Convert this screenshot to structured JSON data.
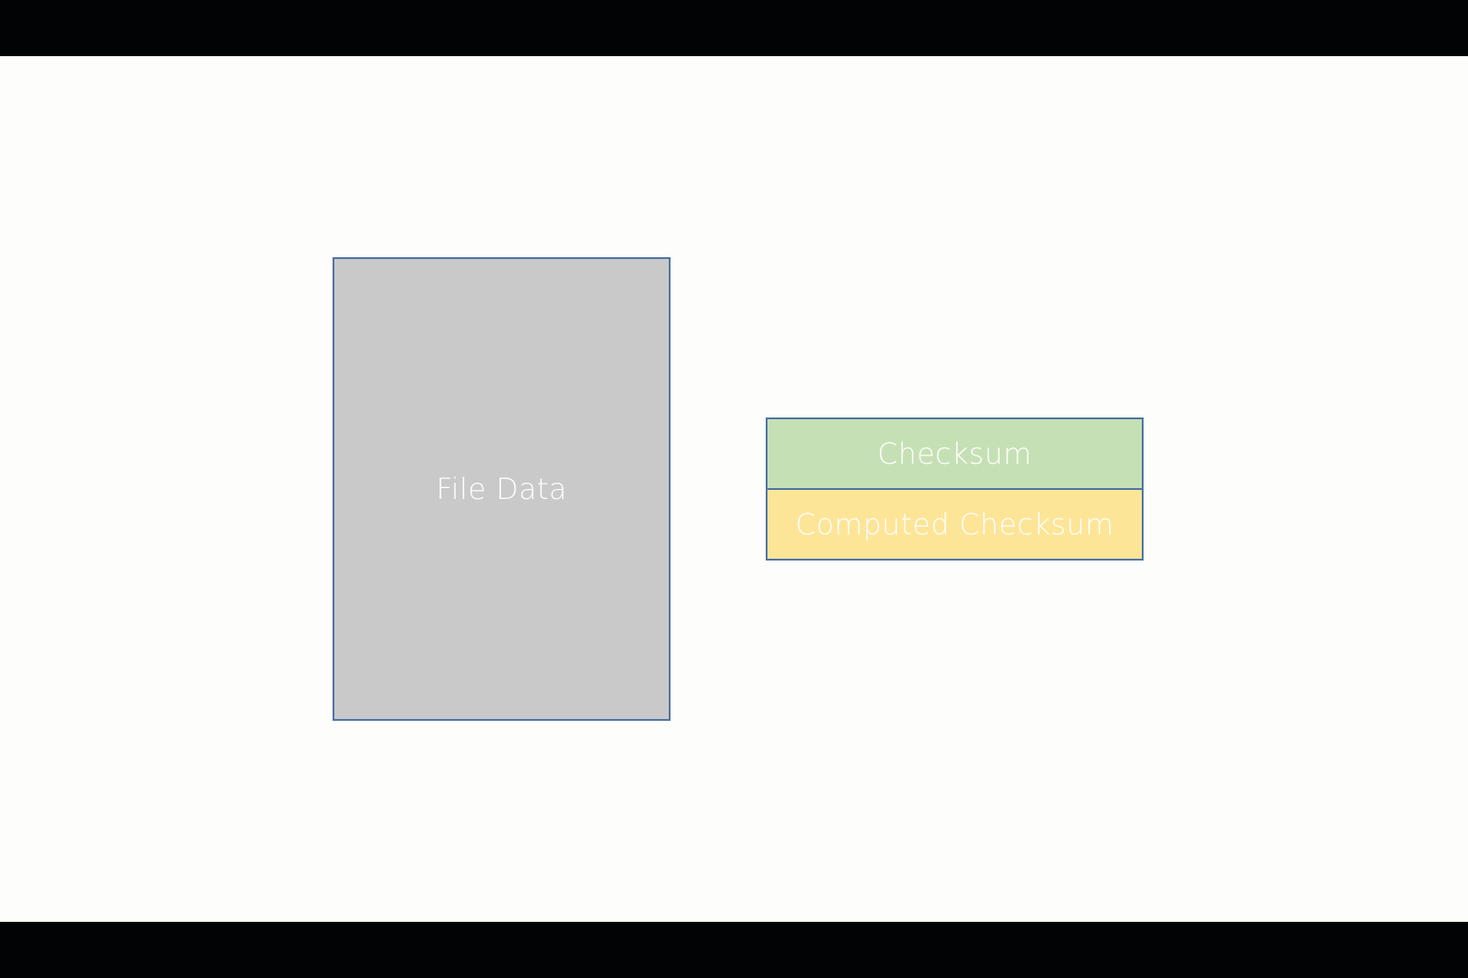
{
  "diagram": {
    "file_data": {
      "label": "File Data",
      "fill": "#c9c9c9",
      "border": "#4f74a6"
    },
    "checksum": {
      "label": "Checksum",
      "fill": "#c6e0b5",
      "border": "#4f74a6"
    },
    "computed_checksum": {
      "label": "Computed Checksum",
      "fill": "#fde598",
      "border": "#4f74a6"
    }
  }
}
